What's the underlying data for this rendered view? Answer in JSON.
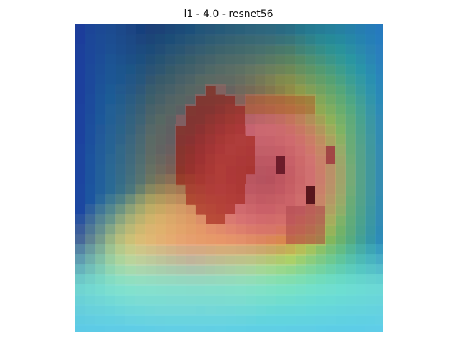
{
  "figure": {
    "title": "l1 - 4.0 - resnet56"
  },
  "image": {
    "description_kind": "saliency heatmap overlay on pixelated input image",
    "colormap": "jet",
    "grid": false,
    "axes": false
  }
}
